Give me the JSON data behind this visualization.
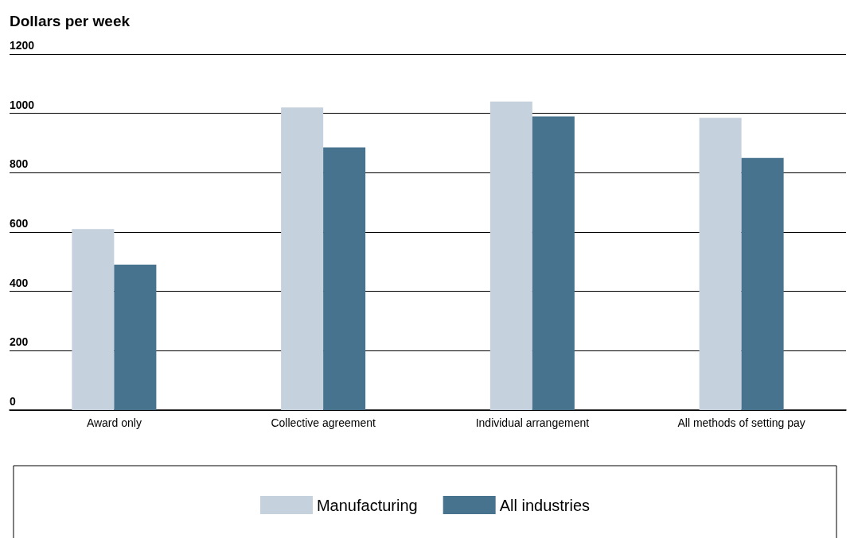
{
  "chart_data": {
    "type": "bar",
    "ylabel": "Dollars per week",
    "categories": [
      "Award only",
      "Collective agreement",
      "Individual arrangement",
      "All methods of setting pay"
    ],
    "series": [
      {
        "name": "Manufacturing",
        "color": "#c5d1dc",
        "values": [
          610,
          1020,
          1040,
          985
        ]
      },
      {
        "name": "All industries",
        "color": "#47738f",
        "values": [
          490,
          885,
          990,
          850
        ]
      }
    ],
    "ylim": [
      0,
      1200
    ],
    "yticks": [
      0,
      200,
      400,
      600,
      800,
      1000,
      1200
    ],
    "grid": "y",
    "legend": "bottom"
  }
}
